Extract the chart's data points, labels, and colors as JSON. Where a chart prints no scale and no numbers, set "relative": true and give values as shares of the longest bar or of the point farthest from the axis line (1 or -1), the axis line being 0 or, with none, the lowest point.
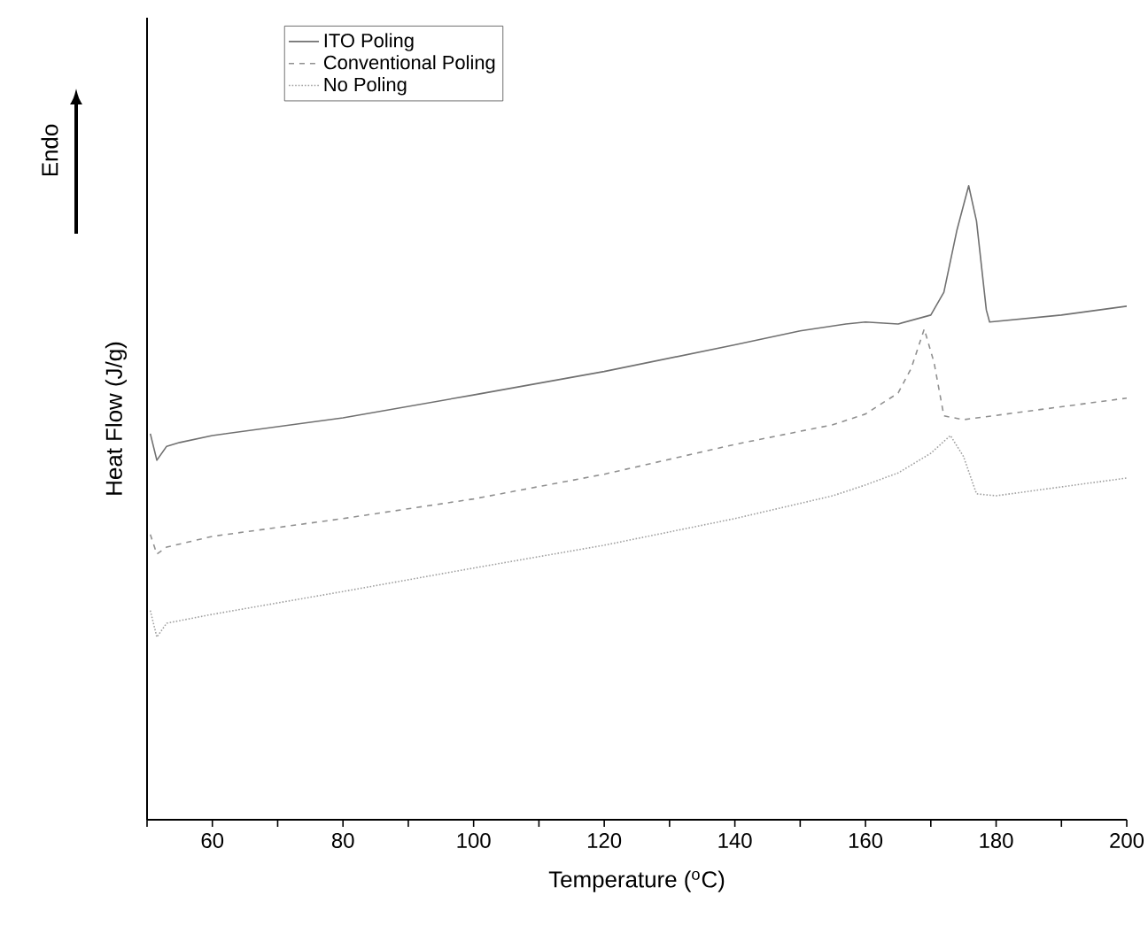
{
  "chart_data": {
    "type": "line",
    "relative": true,
    "xlabel": "Temperature ($^{o}$C)",
    "ylabel": "Heat Flow (J/g)",
    "annotations": [
      "Endo"
    ],
    "xlim": [
      50,
      200
    ],
    "xticks": [
      {
        "value": 50,
        "label": null
      },
      60,
      {
        "value": 70,
        "label": null
      },
      80,
      {
        "value": 90,
        "label": null
      },
      100,
      {
        "value": 110,
        "label": null
      },
      120,
      {
        "value": 130,
        "label": null
      },
      140,
      {
        "value": 150,
        "label": null
      },
      160,
      {
        "value": 170,
        "label": null
      },
      180,
      {
        "value": 190,
        "label": null
      },
      200
    ],
    "tick_labels": "x",
    "legend": "top left",
    "grid": false,
    "marker": "none",
    "series": [
      {
        "name": "ITO Poling",
        "color": "#707070",
        "line_style": "solid",
        "x": [
          50.5,
          51.5,
          53,
          55,
          60,
          80,
          100,
          120,
          140,
          150,
          157,
          160,
          165,
          170,
          172,
          174,
          175.8,
          177,
          178.5,
          179,
          190,
          200
        ],
        "values": [
          0.609,
          0.567,
          0.589,
          0.595,
          0.606,
          0.634,
          0.67,
          0.707,
          0.749,
          0.771,
          0.782,
          0.785,
          0.782,
          0.796,
          0.832,
          0.93,
          1.0,
          0.944,
          0.804,
          0.785,
          0.796,
          0.81
        ]
      },
      {
        "name": "Conventional Poling",
        "color": "#909090",
        "line_style": "dashed",
        "x": [
          50.5,
          51.5,
          53,
          60,
          80,
          100,
          120,
          140,
          155,
          160,
          165,
          167,
          169,
          170.5,
          172,
          175,
          200
        ],
        "values": [
          0.45,
          0.419,
          0.43,
          0.447,
          0.475,
          0.506,
          0.545,
          0.592,
          0.623,
          0.64,
          0.673,
          0.712,
          0.774,
          0.721,
          0.637,
          0.631,
          0.665
        ]
      },
      {
        "name": "No Poling",
        "color": "#a0a0a0",
        "line_style": "dotted",
        "x": [
          50.5,
          51.5,
          53,
          60,
          80,
          100,
          120,
          140,
          155,
          160,
          165,
          170,
          173,
          175,
          177,
          180,
          200
        ],
        "values": [
          0.33,
          0.288,
          0.31,
          0.324,
          0.36,
          0.397,
          0.433,
          0.475,
          0.511,
          0.528,
          0.547,
          0.578,
          0.606,
          0.573,
          0.514,
          0.511,
          0.539
        ]
      }
    ]
  }
}
